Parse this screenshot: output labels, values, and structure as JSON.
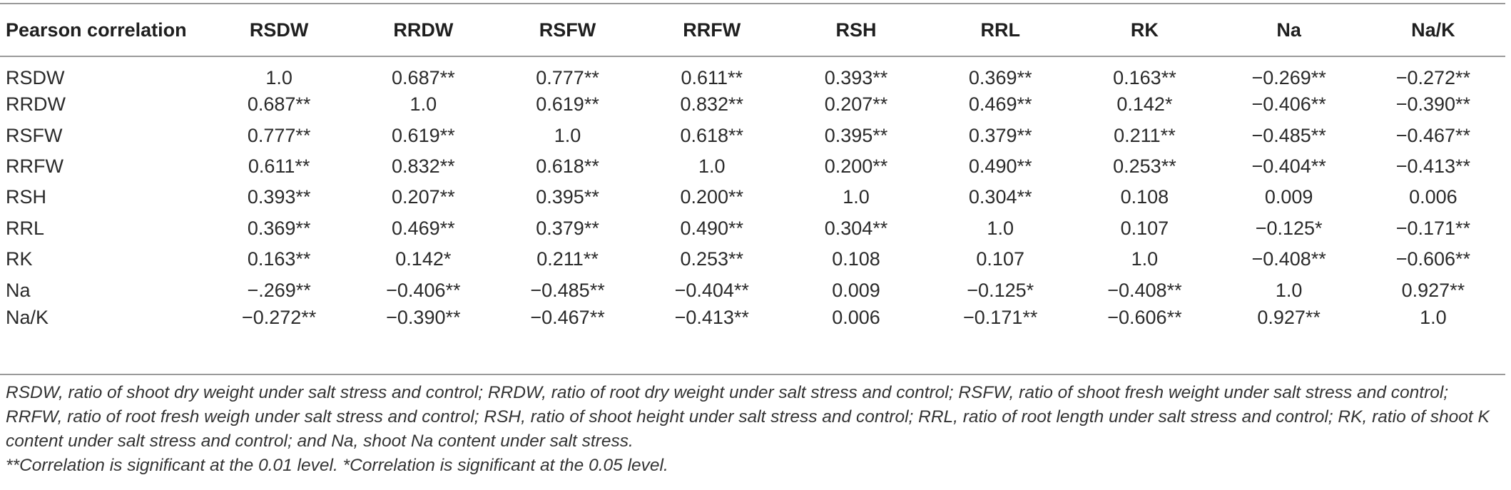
{
  "table": {
    "corner_label": "Pearson correlation",
    "columns": [
      "RSDW",
      "RRDW",
      "RSFW",
      "RRFW",
      "RSH",
      "RRL",
      "RK",
      "Na",
      "Na/K"
    ],
    "rows": [
      {
        "label": "RSDW",
        "cells": [
          "1.0",
          "0.687**",
          "0.777**",
          "0.611**",
          "0.393**",
          "0.369**",
          "0.163**",
          "−0.269**",
          "−0.272**"
        ]
      },
      {
        "label": "RRDW",
        "cells": [
          "0.687**",
          "1.0",
          "0.619**",
          "0.832**",
          "0.207**",
          "0.469**",
          "0.142*",
          "−0.406**",
          "−0.390**"
        ]
      },
      {
        "label": "RSFW",
        "cells": [
          "0.777**",
          "0.619**",
          "1.0",
          "0.618**",
          "0.395**",
          "0.379**",
          "0.211**",
          "−0.485**",
          "−0.467**"
        ]
      },
      {
        "label": "RRFW",
        "cells": [
          "0.611**",
          "0.832**",
          "0.618**",
          "1.0",
          "0.200**",
          "0.490**",
          "0.253**",
          "−0.404**",
          "−0.413**"
        ]
      },
      {
        "label": "RSH",
        "cells": [
          "0.393**",
          "0.207**",
          "0.395**",
          "0.200**",
          "1.0",
          "0.304**",
          "0.108",
          "0.009",
          "0.006"
        ]
      },
      {
        "label": "RRL",
        "cells": [
          "0.369**",
          "0.469**",
          "0.379**",
          "0.490**",
          "0.304**",
          "1.0",
          "0.107",
          "−0.125*",
          "−0.171**"
        ]
      },
      {
        "label": "RK",
        "cells": [
          "0.163**",
          "0.142*",
          "0.211**",
          "0.253**",
          "0.108",
          "0.107",
          "1.0",
          "−0.408**",
          "−0.606**"
        ]
      },
      {
        "label": "Na",
        "cells": [
          "−.269**",
          "−0.406**",
          "−0.485**",
          "−0.404**",
          "0.009",
          "−0.125*",
          "−0.408**",
          "1.0",
          "0.927**"
        ]
      },
      {
        "label": "Na/K",
        "cells": [
          "−0.272**",
          "−0.390**",
          "−0.467**",
          "−0.413**",
          "0.006",
          "−0.171**",
          "−0.606**",
          "0.927**",
          "1.0"
        ]
      }
    ]
  },
  "footnotes": {
    "abbreviations": "RSDW, ratio of shoot dry weight under salt stress and control; RRDW, ratio of root dry weight under salt stress and control; RSFW, ratio of shoot fresh weight under salt stress and control; RRFW, ratio of root fresh weigh under salt stress and control; RSH, ratio of shoot height under salt stress and control; RRL, ratio of root length under salt stress and control; RK, ratio of shoot K content under salt stress and control; and Na, shoot Na content under salt stress.",
    "significance": "**Correlation is significant at the 0.01 level. *Correlation is significant at the 0.05 level."
  }
}
